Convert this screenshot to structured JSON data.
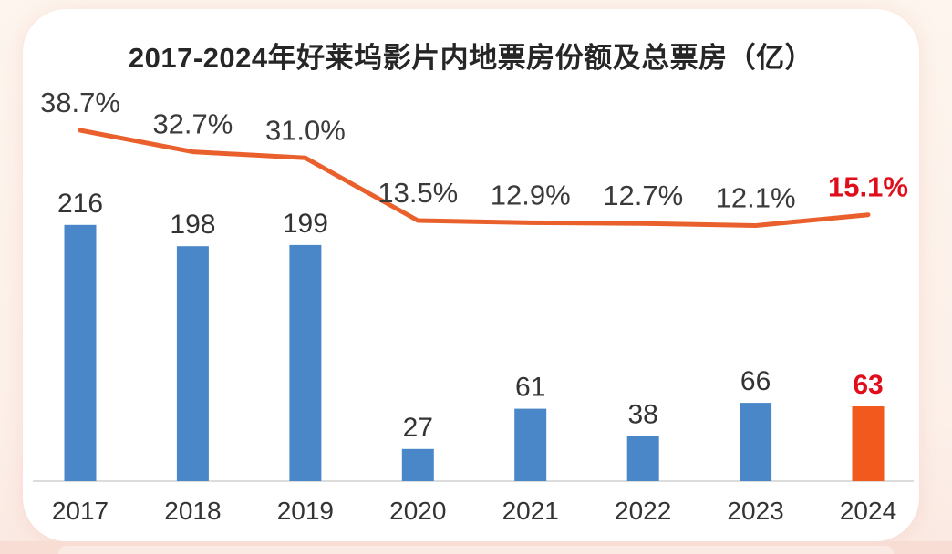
{
  "page": {
    "background_color": "#fcf0e9",
    "card_background_color": "#ffffff",
    "bottom_band_color": "#f8ddd4"
  },
  "chart_data": {
    "type": "bar",
    "title": "2017-2024年好莱坞影片内地票房份额及总票房（亿）",
    "categories": [
      "2017",
      "2018",
      "2019",
      "2020",
      "2021",
      "2022",
      "2023",
      "2024"
    ],
    "series": [
      {
        "name": "total-box-office-billion",
        "type": "bar",
        "values": [
          216,
          198,
          199,
          27,
          61,
          38,
          66,
          63
        ],
        "labels": [
          "216",
          "198",
          "199",
          "27",
          "61",
          "38",
          "66",
          "63"
        ],
        "color": "#4a87c8",
        "highlight_index": 7,
        "highlight_color": "#f25a1d",
        "label_color": "#333333",
        "highlight_label_color": "#e00d1a"
      },
      {
        "name": "hollywood-share-percent",
        "type": "line",
        "values": [
          38.7,
          32.7,
          31.0,
          13.5,
          12.9,
          12.7,
          12.1,
          15.1
        ],
        "labels": [
          "38.7%",
          "32.7%",
          "31.0%",
          "13.5%",
          "12.9%",
          "12.7%",
          "12.1%",
          "15.1%"
        ],
        "color": "#e9602c",
        "label_color": "#3a3a3a",
        "highlight_index": 7,
        "highlight_label_color": "#e00d1a"
      }
    ],
    "xlabel": "",
    "ylabel": "",
    "bar_ylim": [
      0,
      260
    ],
    "line_ylim": [
      0,
      45
    ],
    "grid": false,
    "legend": "none",
    "axis_line_color": "#dcdcdc"
  }
}
